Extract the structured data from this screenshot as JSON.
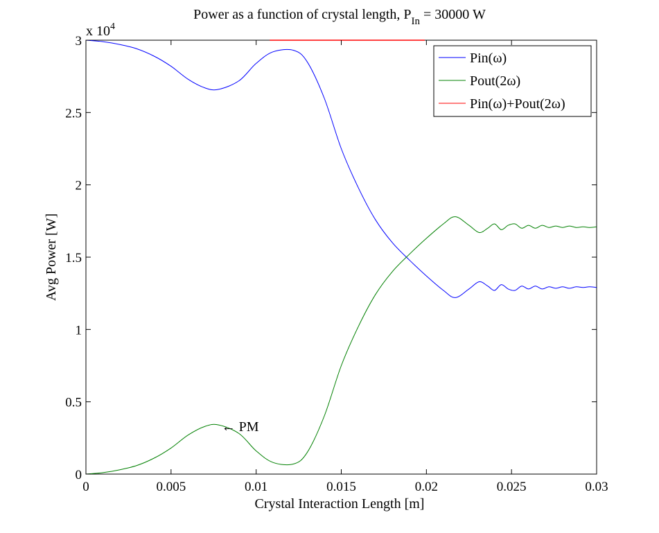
{
  "chart_data": {
    "type": "line",
    "title": "Power as a function of crystal length, P",
    "title_sub": "In",
    "title_tail": "= 30000 W",
    "xlabel": "Crystal Interaction Length [m]",
    "ylabel": "Avg Power [W]",
    "y_multiplier_label": "x 10",
    "y_multiplier_exp": "4",
    "xlim": [
      0,
      0.03
    ],
    "ylim": [
      0,
      3
    ],
    "x_ticks": [
      "0",
      "0.005",
      "0.01",
      "0.015",
      "0.02",
      "0.025",
      "0.03"
    ],
    "y_ticks": [
      "0",
      "0.5",
      "1",
      "1.5",
      "2",
      "2.5",
      "3"
    ],
    "grid": false,
    "legend_position": "top-right",
    "annotation": {
      "text": "← PM",
      "x": 0.0078,
      "y": 0.33
    },
    "series": [
      {
        "name": "Pin(ω)",
        "color": "#0000ff",
        "x": [
          0,
          0.001,
          0.002,
          0.003,
          0.004,
          0.005,
          0.006,
          0.007,
          0.0078,
          0.009,
          0.01,
          0.011,
          0.0122,
          0.013,
          0.014,
          0.015,
          0.016,
          0.017,
          0.018,
          0.019,
          0.02,
          0.021,
          0.0217,
          0.0225,
          0.0231,
          0.0236,
          0.024,
          0.0244,
          0.0248,
          0.0252,
          0.0256,
          0.026,
          0.0264,
          0.0268,
          0.0272,
          0.0276,
          0.028,
          0.0284,
          0.0288,
          0.0292,
          0.0296,
          0.03
        ],
        "values": [
          3.0,
          2.99,
          2.97,
          2.94,
          2.89,
          2.82,
          2.73,
          2.67,
          2.66,
          2.72,
          2.84,
          2.92,
          2.93,
          2.85,
          2.6,
          2.25,
          1.98,
          1.76,
          1.6,
          1.48,
          1.37,
          1.27,
          1.22,
          1.28,
          1.33,
          1.3,
          1.27,
          1.31,
          1.28,
          1.27,
          1.3,
          1.28,
          1.3,
          1.28,
          1.295,
          1.285,
          1.295,
          1.285,
          1.295,
          1.29,
          1.295,
          1.29
        ]
      },
      {
        "name": "Pout(2ω)",
        "color": "#008000",
        "x": [
          0,
          0.001,
          0.002,
          0.003,
          0.004,
          0.005,
          0.006,
          0.007,
          0.0078,
          0.009,
          0.01,
          0.011,
          0.0122,
          0.013,
          0.014,
          0.015,
          0.016,
          0.017,
          0.018,
          0.019,
          0.02,
          0.021,
          0.0217,
          0.0225,
          0.0231,
          0.0236,
          0.024,
          0.0244,
          0.0248,
          0.0252,
          0.0256,
          0.026,
          0.0264,
          0.0268,
          0.0272,
          0.0276,
          0.028,
          0.0284,
          0.0288,
          0.0292,
          0.0296,
          0.03
        ],
        "values": [
          0.0,
          0.01,
          0.03,
          0.06,
          0.11,
          0.18,
          0.27,
          0.33,
          0.34,
          0.28,
          0.16,
          0.08,
          0.07,
          0.15,
          0.4,
          0.75,
          1.02,
          1.24,
          1.4,
          1.52,
          1.63,
          1.73,
          1.78,
          1.72,
          1.67,
          1.7,
          1.73,
          1.69,
          1.72,
          1.73,
          1.7,
          1.72,
          1.7,
          1.72,
          1.705,
          1.715,
          1.705,
          1.715,
          1.705,
          1.71,
          1.705,
          1.71
        ]
      },
      {
        "name": "Pin(ω)+Pout(2ω)",
        "color": "#ff0000",
        "x": [
          0.0108,
          0.0199
        ],
        "values": [
          3.0,
          3.0
        ]
      }
    ]
  }
}
